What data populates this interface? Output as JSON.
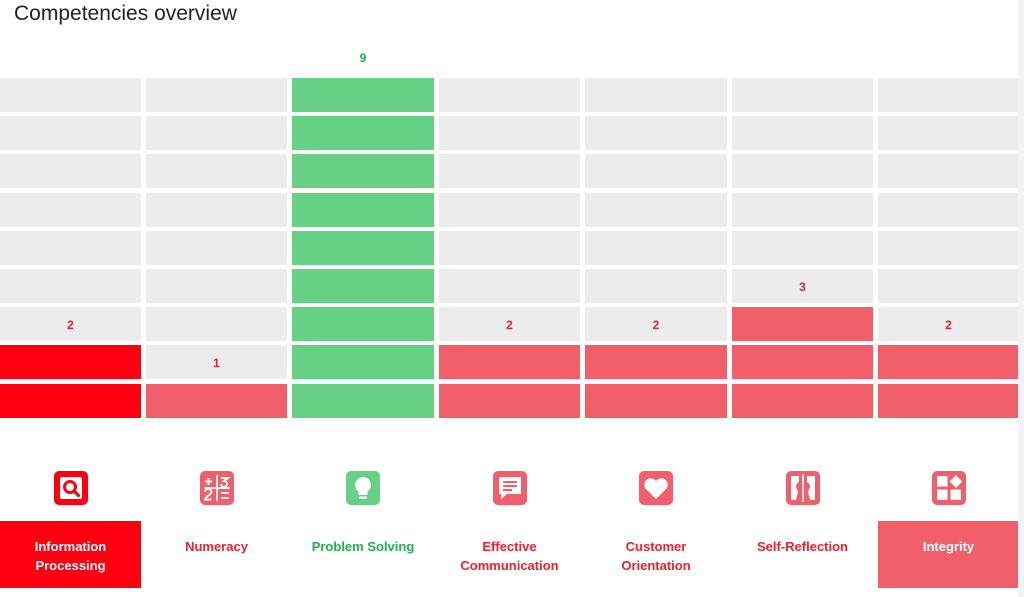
{
  "page": {
    "title": "Competencies overview"
  },
  "colors": {
    "empty": "#ececec",
    "green": "#66d184",
    "red": "#f05f6a",
    "bright_red": "#ff0010",
    "green_text": "#1db34a",
    "red_text": "#f01f2e",
    "title": "#222222"
  },
  "chart_data": {
    "type": "bar",
    "max": 9,
    "categories": [
      {
        "key": "information-processing",
        "label": "Information Processing",
        "value": 2,
        "status": "selected",
        "icon": "magnifier-icon"
      },
      {
        "key": "numeracy",
        "label": "Numeracy",
        "value": 1,
        "status": "low",
        "icon": "calculator-icon"
      },
      {
        "key": "problem-solving",
        "label": "Problem Solving",
        "value": 9,
        "status": "high",
        "icon": "lightbulb-icon"
      },
      {
        "key": "effective-communication",
        "label": "Effective Communication",
        "value": 2,
        "status": "low",
        "icon": "chat-icon"
      },
      {
        "key": "customer-orientation",
        "label": "Customer Orientation",
        "value": 2,
        "status": "low",
        "icon": "heart-icon"
      },
      {
        "key": "self-reflection",
        "label": "Self-Reflection",
        "value": 3,
        "status": "low",
        "icon": "mirror-icon"
      },
      {
        "key": "integrity",
        "label": "Integrity",
        "value": 2,
        "status": "highlighted",
        "icon": "blocks-icon"
      }
    ]
  }
}
